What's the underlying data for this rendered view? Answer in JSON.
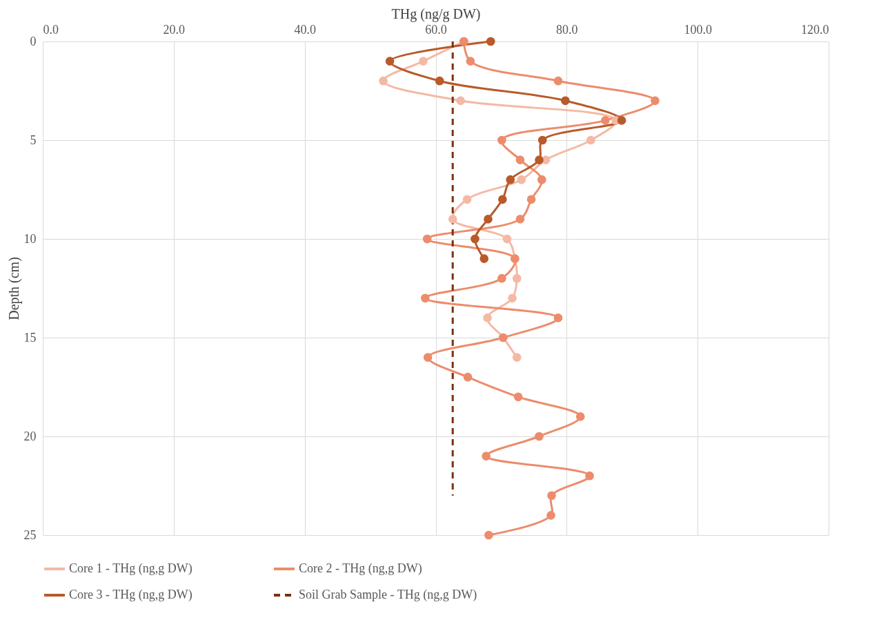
{
  "chart_data": {
    "type": "line",
    "orientation": "horizontal",
    "xlabel": "THg (ng/g DW)",
    "ylabel": "Depth (cm)",
    "xlim": [
      0,
      120
    ],
    "xticks": [
      {
        "value": 0,
        "label": "0.0"
      },
      {
        "value": 20,
        "label": "20.0"
      },
      {
        "value": 40,
        "label": "40.0"
      },
      {
        "value": 60,
        "label": "60.0"
      },
      {
        "value": 80,
        "label": "80.0"
      },
      {
        "value": 100,
        "label": "100.0"
      },
      {
        "value": 120,
        "label": "120.0"
      }
    ],
    "ylim": [
      25,
      0
    ],
    "yticks": [
      0,
      5,
      10,
      15,
      20,
      25
    ],
    "grid": true,
    "legend": "bottom",
    "series": [
      {
        "name": "Core 1 - THg (ng,g DW)",
        "color": "#f4b9a5",
        "marker": "circle",
        "line_style": "solid",
        "x": [
          0,
          1,
          2,
          3,
          4,
          5,
          6,
          7,
          8,
          9,
          10,
          11,
          12,
          13,
          14,
          15,
          16
        ],
        "values": [
          64.3,
          58.1,
          52.0,
          63.8,
          87.5,
          83.7,
          76.8,
          73.1,
          64.8,
          62.6,
          70.9,
          72.1,
          72.4,
          71.7,
          67.9,
          70.3,
          72.4
        ]
      },
      {
        "name": "Core 2 - THg (ng,g DW)",
        "color": "#ec8c6c",
        "marker": "circle",
        "line_style": "solid",
        "x": [
          0,
          1,
          2,
          3,
          4,
          5,
          6,
          7,
          8,
          9,
          10,
          11,
          12,
          13,
          14,
          15,
          16,
          17,
          18,
          19,
          20,
          21,
          22,
          23,
          24,
          25
        ],
        "values": [
          64.3,
          65.3,
          78.7,
          93.5,
          85.9,
          70.1,
          72.9,
          76.2,
          74.6,
          72.9,
          58.7,
          72.1,
          70.1,
          58.4,
          78.7,
          70.3,
          58.8,
          64.9,
          72.6,
          82.1,
          75.8,
          67.7,
          83.5,
          77.7,
          77.6,
          68.1
        ]
      },
      {
        "name": "Core 3 - THg (ng,g DW)",
        "color": "#b85a2a",
        "marker": "circle",
        "line_style": "solid",
        "x": [
          0,
          1,
          2,
          3,
          4,
          5,
          6,
          7,
          8,
          9,
          10,
          11
        ],
        "values": [
          68.4,
          53.0,
          60.6,
          79.8,
          88.4,
          76.3,
          75.8,
          71.4,
          70.2,
          68.0,
          66.0,
          67.4
        ]
      },
      {
        "name": "Soil Grab Sample - THg (ng,g DW)",
        "color": "#7b3012",
        "marker": "none",
        "line_style": "dashed",
        "x": [
          0,
          23
        ],
        "values": [
          62.6,
          62.6
        ]
      }
    ]
  }
}
